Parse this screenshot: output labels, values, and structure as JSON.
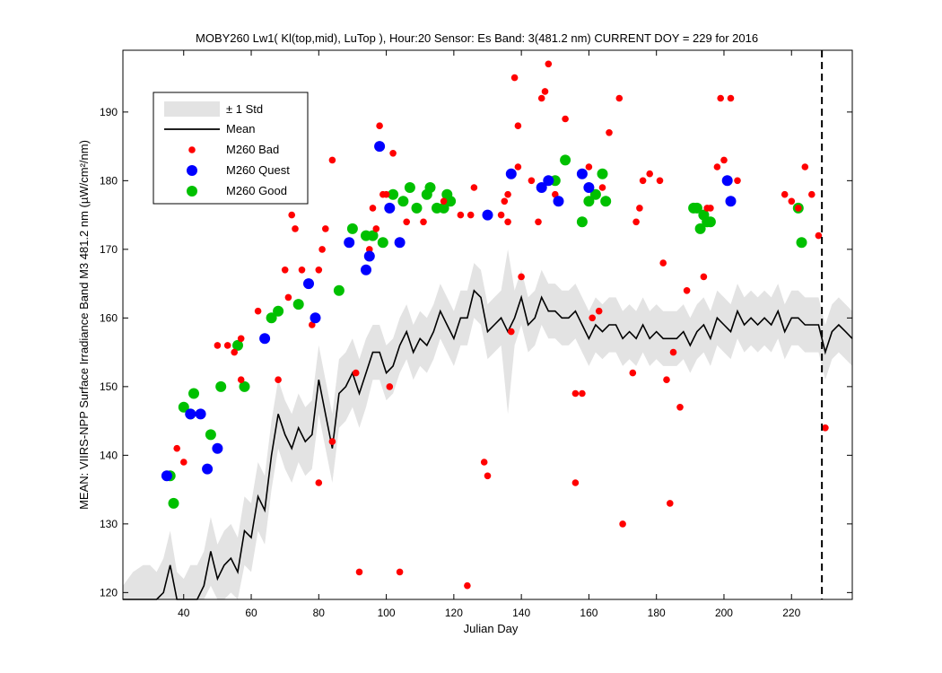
{
  "chart_data": {
    "type": "scatter",
    "title": "MOBY260   Lw1( Kl(top,mid), LuTop ),   Hour:20 Sensor: Es Band: 3(481.2 nm)   CURRENT DOY = 229 for 2016",
    "xlabel": "Julian Day",
    "ylabel": "MEAN: VIIRS-NPP Surface Irradiance Band M3 481.2 nm (µW/cm²/nm)",
    "xlim": [
      22,
      238
    ],
    "ylim": [
      119,
      199
    ],
    "xticks": [
      40,
      60,
      80,
      100,
      120,
      140,
      160,
      180,
      200,
      220
    ],
    "yticks": [
      120,
      130,
      140,
      150,
      160,
      170,
      180,
      190
    ],
    "current_doy": 229,
    "legend": {
      "placement": "top-left",
      "entries": [
        "± 1 Std",
        "Mean",
        "M260 Bad",
        "M260 Quest",
        "M260 Good"
      ]
    },
    "colors": {
      "std": "#e3e3e3",
      "mean": "#000000",
      "bad": "#ff0000",
      "quest": "#0000ff",
      "good": "#00c000"
    },
    "mean": {
      "x": [
        22,
        25,
        28,
        30,
        32,
        34,
        36,
        38,
        40,
        42,
        44,
        46,
        48,
        50,
        52,
        54,
        56,
        58,
        60,
        62,
        64,
        66,
        68,
        70,
        72,
        74,
        76,
        78,
        80,
        82,
        84,
        86,
        88,
        90,
        92,
        94,
        96,
        98,
        100,
        102,
        104,
        106,
        108,
        110,
        112,
        114,
        116,
        118,
        120,
        122,
        124,
        126,
        128,
        130,
        132,
        134,
        136,
        138,
        140,
        142,
        144,
        146,
        148,
        150,
        152,
        154,
        156,
        158,
        160,
        162,
        164,
        166,
        168,
        170,
        172,
        174,
        176,
        178,
        180,
        182,
        184,
        186,
        188,
        190,
        192,
        194,
        196,
        198,
        200,
        202,
        204,
        206,
        208,
        210,
        212,
        214,
        216,
        218,
        220,
        222,
        224,
        226,
        228,
        230,
        232,
        234,
        236,
        238
      ],
      "y": [
        117,
        118,
        119,
        119,
        118,
        120,
        124,
        118,
        117,
        119,
        119,
        121,
        126,
        122,
        124,
        125,
        123,
        129,
        128,
        134,
        132,
        140,
        146,
        143,
        141,
        144,
        142,
        143,
        151,
        146,
        141,
        149,
        150,
        152,
        149,
        152,
        155,
        155,
        152,
        153,
        156,
        158,
        155,
        157,
        156,
        158,
        161,
        159,
        157,
        160,
        160,
        164,
        163,
        158,
        159,
        160,
        158,
        160,
        163,
        159,
        160,
        163,
        161,
        161,
        160,
        160,
        161,
        159,
        157,
        159,
        158,
        159,
        159,
        157,
        158,
        157,
        159,
        157,
        158,
        157,
        157,
        157,
        158,
        156,
        158,
        159,
        157,
        160,
        159,
        158,
        161,
        159,
        160,
        159,
        160,
        159,
        161,
        158,
        160,
        160,
        159,
        159,
        159,
        155,
        158,
        159,
        158,
        157
      ]
    },
    "std": {
      "x": [
        22,
        25,
        28,
        30,
        32,
        34,
        36,
        38,
        40,
        42,
        44,
        46,
        48,
        50,
        52,
        54,
        56,
        58,
        60,
        62,
        64,
        66,
        68,
        70,
        72,
        74,
        76,
        78,
        80,
        82,
        84,
        86,
        88,
        90,
        92,
        94,
        96,
        98,
        100,
        102,
        104,
        106,
        108,
        110,
        112,
        114,
        116,
        118,
        120,
        122,
        124,
        126,
        128,
        130,
        132,
        134,
        136,
        138,
        140,
        142,
        144,
        146,
        148,
        150,
        152,
        154,
        156,
        158,
        160,
        162,
        164,
        166,
        168,
        170,
        172,
        174,
        176,
        178,
        180,
        182,
        184,
        186,
        188,
        190,
        192,
        194,
        196,
        198,
        200,
        202,
        204,
        206,
        208,
        210,
        212,
        214,
        216,
        218,
        220,
        222,
        224,
        226,
        228,
        230,
        232,
        234,
        236,
        238
      ],
      "upper": [
        121,
        123,
        124,
        124,
        123,
        125,
        129,
        123,
        122,
        124,
        124,
        126,
        131,
        127,
        129,
        130,
        128,
        134,
        133,
        139,
        137,
        145,
        151,
        148,
        146,
        149,
        147,
        148,
        156,
        151,
        146,
        154,
        155,
        157,
        154,
        157,
        159,
        159,
        156,
        157,
        160,
        162,
        159,
        161,
        160,
        162,
        165,
        163,
        161,
        164,
        164,
        168,
        167,
        162,
        163,
        164,
        170,
        164,
        167,
        163,
        164,
        167,
        165,
        165,
        164,
        164,
        165,
        163,
        161,
        163,
        162,
        163,
        163,
        161,
        162,
        161,
        163,
        161,
        162,
        161,
        161,
        161,
        162,
        160,
        162,
        163,
        161,
        164,
        163,
        162,
        165,
        163,
        164,
        163,
        164,
        163,
        165,
        162,
        164,
        164,
        163,
        163,
        163,
        159,
        162,
        163,
        162,
        161
      ],
      "lower": [
        113,
        113,
        114,
        114,
        113,
        115,
        119,
        113,
        112,
        114,
        114,
        116,
        121,
        117,
        119,
        120,
        118,
        124,
        123,
        129,
        127,
        135,
        141,
        138,
        136,
        139,
        137,
        138,
        146,
        141,
        136,
        144,
        145,
        147,
        144,
        147,
        151,
        151,
        148,
        149,
        152,
        154,
        151,
        153,
        152,
        154,
        157,
        155,
        153,
        156,
        156,
        160,
        159,
        154,
        155,
        156,
        146,
        156,
        159,
        155,
        156,
        159,
        157,
        157,
        156,
        156,
        157,
        155,
        153,
        155,
        154,
        155,
        155,
        153,
        154,
        153,
        155,
        153,
        154,
        153,
        153,
        153,
        154,
        152,
        154,
        155,
        153,
        156,
        155,
        154,
        157,
        155,
        156,
        155,
        156,
        155,
        157,
        154,
        156,
        156,
        155,
        155,
        155,
        151,
        154,
        155,
        154,
        153
      ]
    },
    "series": [
      {
        "name": "M260 Bad",
        "x": [
          38,
          40,
          50,
          53,
          55,
          57,
          57,
          62,
          68,
          70,
          71,
          72,
          73,
          75,
          78,
          80,
          80,
          81,
          82,
          84,
          84,
          91,
          92,
          95,
          96,
          97,
          98,
          99,
          100,
          101,
          102,
          104,
          106,
          111,
          117,
          122,
          124,
          125,
          126,
          129,
          130,
          134,
          135,
          136,
          136,
          137,
          138,
          139,
          139,
          140,
          143,
          145,
          146,
          147,
          148,
          150,
          153,
          156,
          156,
          158,
          160,
          161,
          163,
          164,
          166,
          169,
          170,
          173,
          174,
          175,
          176,
          178,
          181,
          182,
          183,
          184,
          185,
          187,
          189,
          194,
          195,
          196,
          198,
          199,
          200,
          202,
          204,
          218,
          220,
          222,
          224,
          226,
          228,
          230
        ],
        "y": [
          141,
          139,
          156,
          156,
          155,
          151,
          157,
          161,
          151,
          167,
          163,
          175,
          173,
          167,
          159,
          136,
          167,
          170,
          173,
          142,
          183,
          152,
          123,
          170,
          176,
          173,
          188,
          178,
          178,
          150,
          184,
          123,
          174,
          174,
          177,
          175,
          121,
          175,
          179,
          139,
          137,
          175,
          177,
          178,
          174,
          158,
          195,
          182,
          188,
          166,
          180,
          174,
          192,
          193,
          197,
          178,
          189,
          136,
          149,
          149,
          182,
          160,
          161,
          179,
          187,
          192,
          130,
          152,
          174,
          176,
          180,
          181,
          180,
          168,
          151,
          133,
          155,
          147,
          164,
          166,
          176,
          176,
          182,
          192,
          183,
          192,
          180,
          178,
          177,
          176,
          182,
          178,
          172,
          144
        ]
      },
      {
        "name": "M260 Quest",
        "x": [
          35,
          42,
          45,
          47,
          50,
          64,
          77,
          79,
          89,
          94,
          95,
          98,
          101,
          104,
          130,
          137,
          146,
          148,
          151,
          158,
          160,
          201,
          202
        ],
        "y": [
          137,
          146,
          146,
          138,
          141,
          157,
          165,
          160,
          171,
          167,
          169,
          185,
          176,
          171,
          175,
          181,
          179,
          180,
          177,
          181,
          179,
          180,
          177
        ]
      },
      {
        "name": "M260 Good",
        "x": [
          36,
          37,
          40,
          42,
          43,
          48,
          51,
          56,
          58,
          66,
          68,
          74,
          86,
          90,
          94,
          96,
          99,
          102,
          105,
          107,
          109,
          112,
          113,
          115,
          117,
          118,
          119,
          150,
          153,
          158,
          160,
          162,
          164,
          165,
          191,
          192,
          193,
          194,
          195,
          196,
          222,
          223
        ],
        "y": [
          137,
          133,
          147,
          146,
          149,
          143,
          150,
          156,
          150,
          160,
          161,
          162,
          164,
          173,
          172,
          172,
          171,
          178,
          177,
          179,
          176,
          178,
          179,
          176,
          176,
          178,
          177,
          180,
          183,
          174,
          177,
          178,
          181,
          177,
          176,
          176,
          173,
          175,
          174,
          174,
          176,
          171
        ]
      }
    ]
  }
}
